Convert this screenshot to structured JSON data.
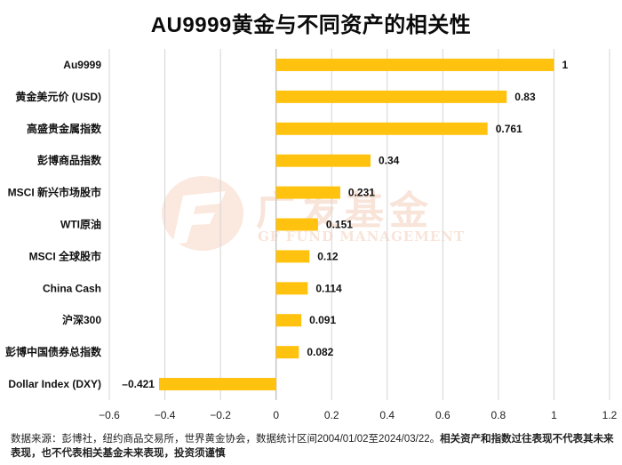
{
  "chart_data": {
    "type": "bar",
    "orientation": "horizontal",
    "title": "AU9999黄金与不同资产的相关性",
    "categories": [
      "Au9999",
      "黄金美元价 (USD)",
      "高盛贵金属指数",
      "彭博商品指数",
      "MSCI 新兴市场股市",
      "WTI原油",
      "MSCI 全球股市",
      "China Cash",
      "沪深300",
      "彭博中国债券总指数",
      "Dollar Index (DXY)"
    ],
    "values": [
      1,
      0.83,
      0.761,
      0.34,
      0.231,
      0.151,
      0.12,
      0.114,
      0.091,
      0.082,
      -0.421
    ],
    "value_labels": [
      "1",
      "0.83",
      "0.761",
      "0.34",
      "0.231",
      "0.151",
      "0.12",
      "0.114",
      "0.091",
      "0.082",
      "–0.421"
    ],
    "xlim": [
      -0.6,
      1.2
    ],
    "xticks": [
      -0.6,
      -0.4,
      -0.2,
      0,
      0.2,
      0.4,
      0.6,
      0.8,
      1,
      1.2
    ],
    "xtick_labels": [
      "−0.6",
      "−0.4",
      "−0.2",
      "0",
      "0.2",
      "0.4",
      "0.6",
      "0.8",
      "1",
      "1.2"
    ],
    "xlabel": "",
    "ylabel": "",
    "grid": "vertical",
    "bar_color": "#FFC20E"
  },
  "watermark": {
    "cn": "广发基金",
    "en": "GF FUND MANAGEMENT"
  },
  "footnote": {
    "normal": "数据来源：彭博社，纽约商品交易所，世界黄金协会，数据统计区间2004/01/02至2024/03/22。",
    "bold": "相关资产和指数过往表现不代表其未来表现，也不代表相关基金未来表现，投资须谨慎"
  }
}
